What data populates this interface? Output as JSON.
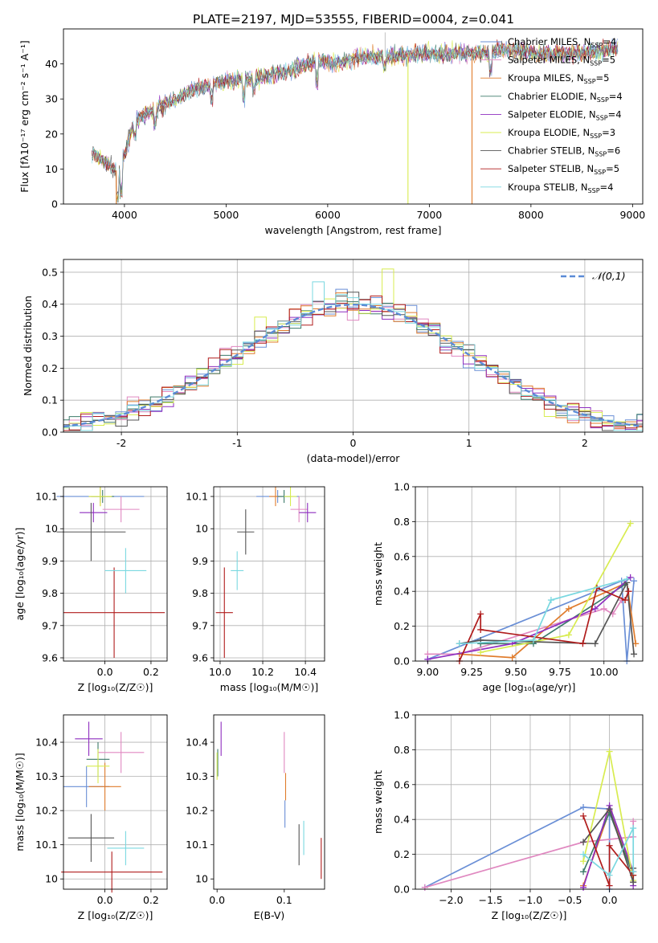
{
  "figure": {
    "title": "PLATE=2197, MJD=53555, FIBERID=0004, z=0.041"
  },
  "series_styles": [
    {
      "name": "Chabrier MILES",
      "nssp": "4",
      "color": "#6a8fd6"
    },
    {
      "name": "Salpeter MILES",
      "nssp": "5",
      "color": "#e088c0"
    },
    {
      "name": "Kroupa MILES",
      "nssp": "5",
      "color": "#e07c2c"
    },
    {
      "name": "Chabrier ELODIE",
      "nssp": "4",
      "color": "#3d7a6a"
    },
    {
      "name": "Salpeter ELODIE",
      "nssp": "4",
      "color": "#8e2ebf"
    },
    {
      "name": "Kroupa ELODIE",
      "nssp": "3",
      "color": "#d8ec50"
    },
    {
      "name": "Chabrier STELIB",
      "nssp": "6",
      "color": "#555555"
    },
    {
      "name": "Salpeter STELIB",
      "nssp": "5",
      "color": "#b01c1c"
    },
    {
      "name": "Kroupa STELIB",
      "nssp": "4",
      "color": "#7ad8e0"
    }
  ],
  "chart_data": [
    {
      "id": "spectrum",
      "type": "line",
      "xlabel": "wavelength [Angstrom, rest frame]",
      "ylabel": "Flux [fλ10⁻¹⁷ erg cm⁻² s⁻¹ A⁻¹]",
      "xlim": [
        3400,
        9100
      ],
      "ylim": [
        0,
        50
      ],
      "xticks": [
        4000,
        5000,
        6000,
        7000,
        8000,
        9000
      ],
      "yticks": [
        0,
        10,
        20,
        30,
        40
      ],
      "grid": false,
      "legend": "right",
      "continuum": {
        "x": [
          3700,
          3850,
          3950,
          4100,
          4300,
          4500,
          4700,
          5000,
          5300,
          5600,
          5900,
          6100,
          6300,
          6600,
          6900,
          7200,
          7500,
          7800,
          8100,
          8400,
          8700,
          8850
        ],
        "y": [
          14,
          11,
          9,
          24,
          27,
          30,
          33,
          35,
          36,
          38,
          41,
          40,
          42,
          42,
          43,
          43,
          43,
          44,
          43,
          43,
          44,
          45
        ]
      },
      "dropouts": [
        {
          "x": 3920,
          "color": "#e07c2c",
          "min_y": 0
        },
        {
          "x": 6790,
          "color": "#d8ec50",
          "min_y": 0
        },
        {
          "x": 7420,
          "color": "#e07c2c",
          "min_y": 0
        }
      ],
      "spikes": [
        {
          "x": 6565,
          "y": 49,
          "color": "#bbbbbb"
        }
      ]
    },
    {
      "id": "residuals",
      "type": "histogram",
      "xlabel": "(data-model)/error",
      "ylabel": "Normed distribution",
      "xlim": [
        -2.5,
        2.5
      ],
      "ylim": [
        0,
        0.54
      ],
      "xticks": [
        -2,
        -1,
        0,
        1,
        2
      ],
      "yticks": [
        0,
        0.1,
        0.2,
        0.3,
        0.4,
        0.5
      ],
      "grid": true,
      "legend": "top-right",
      "reference_label": "𝒩(0,1)",
      "reference_color": "#5b8bd6",
      "bin_width": 0.1,
      "peak_series_values": [
        {
          "color": "#7ad8e0",
          "x": -0.3,
          "y": 0.47
        },
        {
          "color": "#d8ec50",
          "x": 0.3,
          "y": 0.51
        },
        {
          "color": "#d8ec50",
          "x": -0.75,
          "y": 0.36
        }
      ]
    },
    {
      "id": "age-z",
      "type": "scatter",
      "xlabel": "Z [log₁₀(Z/Z☉)]",
      "ylabel": "age  [log₁₀(age/yr)]",
      "xlim": [
        -0.18,
        0.27
      ],
      "ylim": [
        9.59,
        10.13
      ],
      "xticks": [
        0.0,
        0.2
      ],
      "xticklabels": [
        "0.0",
        "0.2"
      ],
      "yticks": [
        9.6,
        9.7,
        9.8,
        9.9,
        10.0,
        10.1
      ],
      "grid": true,
      "points": [
        {
          "series": "Chabrier MILES",
          "x": -0.02,
          "y": 10.1,
          "xerr": 0.19,
          "yerr": 0.02
        },
        {
          "series": "Salpeter MILES",
          "x": 0.07,
          "y": 10.06,
          "xerr": 0.08,
          "yerr": 0.04
        },
        {
          "series": "Kroupa MILES",
          "x": -0.02,
          "y": 10.1,
          "xerr": 0.05,
          "yerr": 0.03
        },
        {
          "series": "Chabrier ELODIE",
          "x": -0.01,
          "y": 10.1,
          "xerr": 0.05,
          "yerr": 0.02
        },
        {
          "series": "Salpeter ELODIE",
          "x": -0.05,
          "y": 10.05,
          "xerr": 0.06,
          "yerr": 0.03
        },
        {
          "series": "Kroupa ELODIE",
          "x": -0.02,
          "y": 10.1,
          "xerr": 0.05,
          "yerr": 0.03
        },
        {
          "series": "Chabrier STELIB",
          "x": -0.06,
          "y": 9.99,
          "xerr": 0.15,
          "yerr": 0.09
        },
        {
          "series": "Salpeter STELIB",
          "x": 0.04,
          "y": 9.74,
          "xerr": 0.22,
          "yerr": 0.14
        },
        {
          "series": "Kroupa STELIB",
          "x": 0.09,
          "y": 9.87,
          "xerr": 0.09,
          "yerr": 0.07
        }
      ]
    },
    {
      "id": "age-mass",
      "type": "scatter",
      "xlabel": "mass [log₁₀(M/M☉)]",
      "ylabel": "",
      "xlim": [
        9.97,
        10.49
      ],
      "ylim": [
        9.59,
        10.13
      ],
      "xticks": [
        10.0,
        10.2,
        10.4
      ],
      "xticklabels": [
        "10.0",
        "10.2",
        "10.4"
      ],
      "yticks": [
        9.6,
        9.7,
        9.8,
        9.9,
        10.0,
        10.1
      ],
      "grid": true,
      "points": [
        {
          "series": "Chabrier MILES",
          "x": 10.27,
          "y": 10.1,
          "xerr": 0.1,
          "yerr": 0.02
        },
        {
          "series": "Salpeter MILES",
          "x": 10.37,
          "y": 10.06,
          "xerr": 0.04,
          "yerr": 0.04
        },
        {
          "series": "Kroupa MILES",
          "x": 10.26,
          "y": 10.1,
          "xerr": 0.03,
          "yerr": 0.03
        },
        {
          "series": "Chabrier ELODIE",
          "x": 10.3,
          "y": 10.1,
          "xerr": 0.03,
          "yerr": 0.02
        },
        {
          "series": "Salpeter ELODIE",
          "x": 10.41,
          "y": 10.05,
          "xerr": 0.04,
          "yerr": 0.03
        },
        {
          "series": "Kroupa ELODIE",
          "x": 10.33,
          "y": 10.1,
          "xerr": 0.03,
          "yerr": 0.03
        },
        {
          "series": "Chabrier STELIB",
          "x": 10.12,
          "y": 9.99,
          "xerr": 0.04,
          "yerr": 0.07
        },
        {
          "series": "Salpeter STELIB",
          "x": 10.02,
          "y": 9.74,
          "xerr": 0.04,
          "yerr": 0.14
        },
        {
          "series": "Kroupa STELIB",
          "x": 10.08,
          "y": 9.87,
          "xerr": 0.03,
          "yerr": 0.06
        }
      ]
    },
    {
      "id": "weight-age",
      "type": "line",
      "xlabel": "age  [log₁₀(age/yr)]",
      "ylabel": "mass weight",
      "xlim": [
        8.93,
        10.22
      ],
      "ylim": [
        0,
        1.0
      ],
      "xticks": [
        9.0,
        9.25,
        9.5,
        9.75,
        10.0
      ],
      "xticklabels": [
        "9.00",
        "9.25",
        "9.50",
        "9.75",
        "10.00"
      ],
      "yticks": [
        0,
        0.2,
        0.4,
        0.6,
        0.8,
        1.0
      ],
      "grid": true,
      "series": [
        {
          "name": "Chabrier MILES",
          "x": [
            9.0,
            10.1,
            10.13,
            10.17
          ],
          "y": [
            0.01,
            0.46,
            0.0,
            0.46
          ]
        },
        {
          "name": "Salpeter MILES",
          "x": [
            9.0,
            9.18,
            10.0,
            10.05,
            10.1
          ],
          "y": [
            0.04,
            0.04,
            0.3,
            0.27,
            0.35
          ]
        },
        {
          "name": "Kroupa MILES",
          "x": [
            9.18,
            9.48,
            9.8,
            10.13,
            10.18
          ],
          "y": [
            0.04,
            0.02,
            0.3,
            0.45,
            0.1
          ]
        },
        {
          "name": "Chabrier ELODIE",
          "x": [
            9.3,
            9.6,
            10.12
          ],
          "y": [
            0.1,
            0.1,
            0.44
          ]
        },
        {
          "name": "Salpeter ELODIE",
          "x": [
            9.0,
            9.48,
            9.95,
            10.15
          ],
          "y": [
            0.01,
            0.1,
            0.3,
            0.48
          ]
        },
        {
          "name": "Kroupa ELODIE",
          "x": [
            9.3,
            9.8,
            10.15
          ],
          "y": [
            0.05,
            0.15,
            0.79
          ]
        },
        {
          "name": "Chabrier STELIB",
          "x": [
            9.18,
            9.3,
            9.95,
            10.13,
            10.17
          ],
          "y": [
            0.1,
            0.12,
            0.1,
            0.45,
            0.04
          ]
        },
        {
          "name": "Salpeter STELIB",
          "x": [
            9.18,
            9.3,
            9.3,
            9.88,
            9.96,
            10.12,
            10.14
          ],
          "y": [
            0.0,
            0.27,
            0.18,
            0.1,
            0.42,
            0.35,
            0.4
          ]
        },
        {
          "name": "Kroupa STELIB",
          "x": [
            9.18,
            9.6,
            9.7,
            10.13
          ],
          "y": [
            0.1,
            0.12,
            0.35,
            0.47
          ]
        }
      ]
    },
    {
      "id": "mass-z",
      "type": "scatter",
      "xlabel": "Z [log₁₀(Z/Z☉)]",
      "ylabel": "mass [log₁₀(M/M☉)]",
      "xlim": [
        -0.18,
        0.27
      ],
      "ylim": [
        9.97,
        10.48
      ],
      "xticks": [
        0.0,
        0.2
      ],
      "xticklabels": [
        "0.0",
        "0.2"
      ],
      "yticks": [
        10.0,
        10.1,
        10.2,
        10.3,
        10.4
      ],
      "grid": true,
      "points": [
        {
          "series": "Chabrier MILES",
          "x": -0.08,
          "y": 10.27,
          "xerr": 0.1,
          "yerr": 0.06
        },
        {
          "series": "Salpeter MILES",
          "x": 0.07,
          "y": 10.37,
          "xerr": 0.1,
          "yerr": 0.06
        },
        {
          "series": "Kroupa MILES",
          "x": 0.0,
          "y": 10.27,
          "xerr": 0.07,
          "yerr": 0.07
        },
        {
          "series": "Chabrier ELODIE",
          "x": -0.03,
          "y": 10.35,
          "xerr": 0.05,
          "yerr": 0.05
        },
        {
          "series": "Salpeter ELODIE",
          "x": -0.07,
          "y": 10.41,
          "xerr": 0.06,
          "yerr": 0.05
        },
        {
          "series": "Kroupa ELODIE",
          "x": -0.03,
          "y": 10.33,
          "xerr": 0.05,
          "yerr": 0.05
        },
        {
          "series": "Chabrier STELIB",
          "x": -0.06,
          "y": 10.12,
          "xerr": 0.1,
          "yerr": 0.07
        },
        {
          "series": "Salpeter STELIB",
          "x": 0.03,
          "y": 10.02,
          "xerr": 0.22,
          "yerr": 0.06
        },
        {
          "series": "Kroupa STELIB",
          "x": 0.09,
          "y": 10.09,
          "xerr": 0.08,
          "yerr": 0.05
        }
      ]
    },
    {
      "id": "mass-ebv",
      "type": "scatter",
      "xlabel": "E(B-V)",
      "ylabel": "",
      "xlim": [
        -0.005,
        0.16
      ],
      "ylim": [
        9.97,
        10.48
      ],
      "xticks": [
        0.0,
        0.1
      ],
      "xticklabels": [
        "0.0",
        "0.1"
      ],
      "yticks": [
        10.0,
        10.1,
        10.2,
        10.3,
        10.4
      ],
      "grid": false,
      "points": [
        {
          "series": "Chabrier MILES",
          "x": 0.101,
          "y": 10.19,
          "xerr": 0,
          "yerr": 0.04
        },
        {
          "series": "Salpeter MILES",
          "x": 0.1,
          "y": 10.37,
          "xerr": 0,
          "yerr": 0.06
        },
        {
          "series": "Kroupa MILES",
          "x": 0.102,
          "y": 10.27,
          "xerr": 0,
          "yerr": 0.04
        },
        {
          "series": "Chabrier ELODIE",
          "x": 0.001,
          "y": 10.34,
          "xerr": 0,
          "yerr": 0.04
        },
        {
          "series": "Salpeter ELODIE",
          "x": 0.006,
          "y": 10.41,
          "xerr": 0,
          "yerr": 0.05
        },
        {
          "series": "Kroupa ELODIE",
          "x": 0.0,
          "y": 10.33,
          "xerr": 0,
          "yerr": 0.04
        },
        {
          "series": "Chabrier STELIB",
          "x": 0.122,
          "y": 10.1,
          "xerr": 0,
          "yerr": 0.06
        },
        {
          "series": "Salpeter STELIB",
          "x": 0.155,
          "y": 10.06,
          "xerr": 0,
          "yerr": 0.06
        },
        {
          "series": "Kroupa STELIB",
          "x": 0.129,
          "y": 10.12,
          "xerr": 0,
          "yerr": 0.05
        }
      ]
    },
    {
      "id": "weight-z",
      "type": "line",
      "xlabel": "Z [log₁₀(Z/Z☉)]",
      "ylabel": "mass weight",
      "xlim": [
        -2.45,
        0.42
      ],
      "ylim": [
        0,
        1.0
      ],
      "xticks": [
        -2.0,
        -1.5,
        -1.0,
        -0.5,
        0.0
      ],
      "xticklabels": [
        "−2.0",
        "−1.5",
        "−1.0",
        "−0.5",
        "0.0"
      ],
      "yticks": [
        0,
        0.2,
        0.4,
        0.6,
        0.8,
        1.0
      ],
      "grid": true,
      "series": [
        {
          "name": "Chabrier MILES",
          "x": [
            -2.33,
            -0.33,
            0.0,
            0.0
          ],
          "y": [
            0.01,
            0.47,
            0.46,
            0.0
          ]
        },
        {
          "name": "Salpeter MILES",
          "x": [
            -2.33,
            -0.33,
            0.3,
            0.3
          ],
          "y": [
            0.01,
            0.27,
            0.3,
            0.39
          ]
        },
        {
          "name": "Kroupa MILES",
          "x": [
            -0.33,
            0.0,
            0.3,
            0.3
          ],
          "y": [
            0.02,
            0.45,
            0.1,
            0.04
          ]
        },
        {
          "name": "Chabrier ELODIE",
          "x": [
            -0.33,
            0.0,
            0.3
          ],
          "y": [
            0.1,
            0.44,
            0.08
          ]
        },
        {
          "name": "Salpeter ELODIE",
          "x": [
            -0.33,
            0.0,
            0.3,
            0.3
          ],
          "y": [
            0.01,
            0.48,
            0.1,
            0.02
          ]
        },
        {
          "name": "Kroupa ELODIE",
          "x": [
            -0.33,
            0.0,
            0.3
          ],
          "y": [
            0.16,
            0.79,
            0.05
          ]
        },
        {
          "name": "Chabrier STELIB",
          "x": [
            -0.33,
            0.0,
            0.3,
            0.3
          ],
          "y": [
            0.27,
            0.46,
            0.04,
            0.12
          ]
        },
        {
          "name": "Salpeter STELIB",
          "x": [
            -0.33,
            0.0,
            0.0,
            0.3
          ],
          "y": [
            0.42,
            0.02,
            0.25,
            0.08
          ]
        },
        {
          "name": "Kroupa STELIB",
          "x": [
            -0.33,
            0.0,
            0.3,
            0.3
          ],
          "y": [
            0.2,
            0.08,
            0.35,
            0.1
          ]
        }
      ]
    }
  ]
}
